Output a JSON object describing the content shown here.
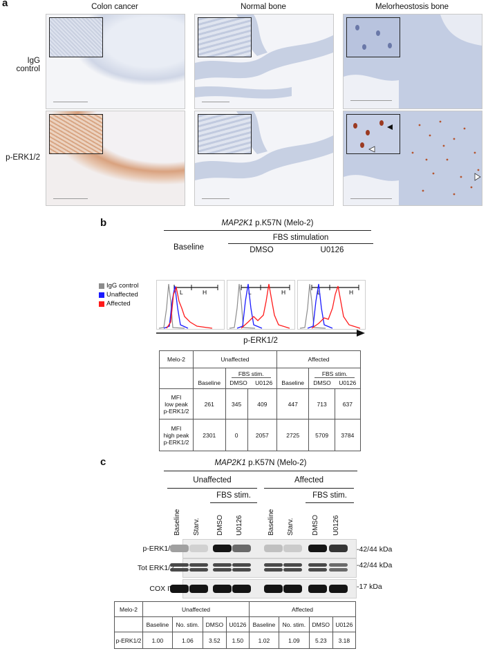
{
  "panel_a": {
    "label": "a",
    "columns": [
      "Colon cancer",
      "Normal bone",
      "Melorheostosis bone"
    ],
    "rows": [
      "IgG control",
      "p-ERK1/2"
    ]
  },
  "panel_b": {
    "label": "b",
    "title_gene": "MAP2K1",
    "title_rest": " p.K57N (Melo-2)",
    "fbs_header": "FBS stimulation",
    "conditions": [
      "Baseline",
      "DMSO",
      "U0126"
    ],
    "gate_low": "L",
    "gate_high": "H",
    "legend": [
      {
        "label": "IgG control",
        "color": "#8c8c8c"
      },
      {
        "label": "Unaffected",
        "color": "#1a1aff"
      },
      {
        "label": "Affected",
        "color": "#ff1a1a"
      }
    ],
    "x_axis": "p-ERK1/2",
    "table": {
      "corner": "Melo-2",
      "group_unaffected": "Unaffected",
      "group_affected": "Affected",
      "fbs_sub": "FBS stim.",
      "sub_cols": [
        "Baseline",
        "DMSO",
        "U0126",
        "Baseline",
        "DMSO",
        "U0126"
      ],
      "row1_label": [
        "MFI",
        "low peak",
        "p-ERK1/2"
      ],
      "row1_values": [
        "261",
        "345",
        "409",
        "447",
        "713",
        "637"
      ],
      "row2_label": [
        "MFI",
        "high peak",
        "p-ERK1/2"
      ],
      "row2_values": [
        "2301",
        "0",
        "2057",
        "2725",
        "5709",
        "3784"
      ]
    }
  },
  "panel_c": {
    "label": "c",
    "title_gene": "MAP2K1",
    "title_rest": " p.K57N (Melo-2)",
    "group_unaffected": "Unaffected",
    "group_affected": "Affected",
    "fbs_sub": "FBS stim.",
    "lanes": [
      "Baseline",
      "Starv.",
      "DMSO",
      "U0126",
      "Baseline",
      "Starv.",
      "DMSO",
      "U0126"
    ],
    "blot_rows": [
      "p-ERK1/2",
      "Tot ERK1/2",
      "COX IV"
    ],
    "kda": [
      "-42/44 kDa",
      "-42/44 kDa",
      "-17 kDa"
    ],
    "table": {
      "corner": "Melo-2",
      "group_unaffected": "Unaffected",
      "group_affected": "Affected",
      "sub_cols": [
        "Baseline",
        "No. stim.",
        "DMSO",
        "U0126",
        "Baseline",
        "No. stim.",
        "DMSO",
        "U0126"
      ],
      "row_label": "p-ERK1/2",
      "values": [
        "1.00",
        "1.06",
        "3.52",
        "1.50",
        "1.02",
        "1.09",
        "5.23",
        "3.18"
      ]
    },
    "band_intensity": {
      "p_erk": [
        0.35,
        0.12,
        1.0,
        0.6,
        0.2,
        0.15,
        1.0,
        0.85
      ],
      "tot_erk": [
        0.75,
        0.75,
        0.75,
        0.75,
        0.75,
        0.75,
        0.75,
        0.6
      ],
      "cox": [
        1.0,
        1.0,
        1.0,
        1.0,
        1.0,
        1.0,
        1.0,
        1.0
      ]
    }
  }
}
